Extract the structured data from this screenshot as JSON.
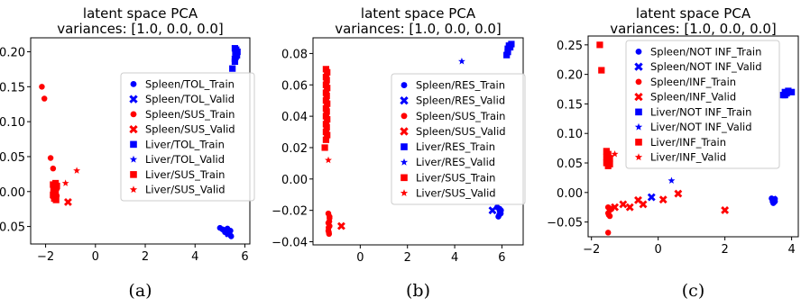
{
  "chart_data": [
    {
      "type": "scatter",
      "title": "latent space PCA",
      "subtitle": "variances: [1.0, 0.0, 0.0]",
      "caption": "(a)",
      "xlim": [
        -2.6,
        6.2
      ],
      "ylim": [
        -0.075,
        0.22
      ],
      "xticks": [
        -2,
        0,
        2,
        4,
        6
      ],
      "yticks": [
        -0.05,
        0.0,
        0.05,
        0.1,
        0.15,
        0.2
      ],
      "ytick_labels": [
        "−0.05",
        "0.00",
        "0.05",
        "0.10",
        "0.15",
        "0.20"
      ],
      "xtick_labels": [
        "−2",
        "0",
        "2",
        "4",
        "6"
      ],
      "legend_position": "center-right",
      "series": [
        {
          "name": "Spleen/TOL_Train",
          "color": "#0000ff",
          "marker": "circle",
          "points": [
            [
              5.0,
              -0.052
            ],
            [
              5.1,
              -0.054
            ],
            [
              5.2,
              -0.055
            ],
            [
              5.25,
              -0.057
            ],
            [
              5.3,
              -0.053
            ],
            [
              5.35,
              -0.058
            ],
            [
              5.38,
              -0.06
            ],
            [
              5.4,
              -0.062
            ],
            [
              5.42,
              -0.056
            ],
            [
              5.45,
              -0.064
            ],
            [
              5.3,
              -0.059
            ],
            [
              5.2,
              -0.058
            ]
          ]
        },
        {
          "name": "Spleen/TOL_Valid",
          "color": "#0000ff",
          "marker": "x",
          "points": [
            [
              5.35,
              -0.06
            ]
          ]
        },
        {
          "name": "Spleen/SUS_Train",
          "color": "#ff0000",
          "marker": "circle",
          "points": [
            [
              -2.15,
              0.15
            ],
            [
              -2.05,
              0.133
            ],
            [
              -1.8,
              0.048
            ],
            [
              -1.7,
              0.033
            ],
            [
              -1.65,
              0.008
            ],
            [
              -1.6,
              0.002
            ],
            [
              -1.65,
              -0.004
            ],
            [
              -1.55,
              0.004
            ],
            [
              -1.7,
              -0.008
            ],
            [
              -1.6,
              -0.012
            ],
            [
              -1.55,
              -0.006
            ],
            [
              -1.7,
              0.0
            ]
          ]
        },
        {
          "name": "Spleen/SUS_Valid",
          "color": "#ff0000",
          "marker": "x",
          "points": [
            [
              -1.1,
              -0.015
            ]
          ]
        },
        {
          "name": "Liver/TOL_Train",
          "color": "#0000ff",
          "marker": "square",
          "points": [
            [
              5.5,
              0.176
            ],
            [
              5.6,
              0.19
            ],
            [
              5.62,
              0.2
            ],
            [
              5.6,
              0.205
            ],
            [
              5.65,
              0.198
            ],
            [
              5.68,
              0.195
            ],
            [
              5.6,
              0.186
            ],
            [
              5.65,
              0.203
            ],
            [
              5.63,
              0.193
            ],
            [
              5.7,
              0.2
            ]
          ]
        },
        {
          "name": "Liver/TOL_Valid",
          "color": "#0000ff",
          "marker": "star",
          "points": [
            [
              5.6,
              0.192
            ]
          ]
        },
        {
          "name": "Liver/SUS_Train",
          "color": "#ff0000",
          "marker": "square",
          "points": [
            [
              -1.7,
              0.01
            ],
            [
              -1.65,
              0.005
            ],
            [
              -1.6,
              -0.002
            ],
            [
              -1.65,
              -0.01
            ],
            [
              -1.55,
              0.008
            ],
            [
              -1.6,
              0.012
            ],
            [
              -1.7,
              -0.005
            ],
            [
              -1.58,
              -0.012
            ],
            [
              -1.62,
              0.002
            ],
            [
              -1.68,
              0.006
            ]
          ]
        },
        {
          "name": "Liver/SUS_Valid",
          "color": "#ff0000",
          "marker": "star",
          "points": [
            [
              -0.75,
              0.03
            ],
            [
              -1.2,
              0.012
            ]
          ]
        }
      ]
    },
    {
      "type": "scatter",
      "title": "latent space PCA",
      "subtitle": "variances: [1.0, 0.0, 0.0]",
      "caption": "(b)",
      "xlim": [
        -2.0,
        6.9
      ],
      "ylim": [
        -0.042,
        0.09
      ],
      "xticks": [
        0,
        2,
        4,
        6
      ],
      "yticks": [
        -0.04,
        -0.02,
        0.0,
        0.02,
        0.04,
        0.06,
        0.08
      ],
      "ytick_labels": [
        "−0.04",
        "−0.02",
        "0.00",
        "0.02",
        "0.04",
        "0.06",
        "0.08"
      ],
      "xtick_labels": [
        "0",
        "2",
        "4",
        "6"
      ],
      "legend_position": "center-right",
      "series": [
        {
          "name": "Spleen/RES_Train",
          "color": "#0000ff",
          "marker": "circle",
          "points": [
            [
              5.8,
              -0.018
            ],
            [
              5.9,
              -0.02
            ],
            [
              5.95,
              -0.022
            ],
            [
              5.85,
              -0.024
            ],
            [
              5.9,
              -0.019
            ],
            [
              5.92,
              -0.021
            ],
            [
              5.88,
              -0.023
            ],
            [
              5.96,
              -0.02
            ]
          ]
        },
        {
          "name": "Spleen/RES_Valid",
          "color": "#0000ff",
          "marker": "x",
          "points": [
            [
              5.6,
              -0.02
            ]
          ]
        },
        {
          "name": "Spleen/SUS_Train",
          "color": "#ff0000",
          "marker": "circle",
          "points": [
            [
              -1.35,
              -0.022
            ],
            [
              -1.3,
              -0.025
            ],
            [
              -1.35,
              -0.028
            ],
            [
              -1.3,
              -0.03
            ],
            [
              -1.35,
              -0.033
            ],
            [
              -1.32,
              -0.035
            ],
            [
              -1.3,
              -0.024
            ],
            [
              -1.34,
              -0.031
            ],
            [
              -1.31,
              -0.027
            ],
            [
              -1.33,
              -0.034
            ]
          ]
        },
        {
          "name": "Spleen/SUS_Valid",
          "color": "#ff0000",
          "marker": "x",
          "points": [
            [
              -0.8,
              -0.03
            ]
          ]
        },
        {
          "name": "Liver/RES_Train",
          "color": "#0000ff",
          "marker": "square",
          "points": [
            [
              6.2,
              0.079
            ],
            [
              6.25,
              0.083
            ],
            [
              6.3,
              0.085
            ],
            [
              6.4,
              0.086
            ],
            [
              6.25,
              0.081
            ],
            [
              6.35,
              0.084
            ]
          ]
        },
        {
          "name": "Liver/RES_Valid",
          "color": "#0000ff",
          "marker": "star",
          "points": [
            [
              4.3,
              0.075
            ]
          ]
        },
        {
          "name": "Liver/SUS_Train",
          "color": "#ff0000",
          "marker": "square",
          "points": [
            [
              -1.45,
              0.07
            ],
            [
              -1.45,
              0.065
            ],
            [
              -1.45,
              0.06
            ],
            [
              -1.45,
              0.055
            ],
            [
              -1.45,
              0.05
            ],
            [
              -1.45,
              0.045
            ],
            [
              -1.45,
              0.04
            ],
            [
              -1.45,
              0.035
            ],
            [
              -1.45,
              0.03
            ],
            [
              -1.45,
              0.025
            ],
            [
              -1.5,
              0.02
            ],
            [
              -1.4,
              0.068
            ],
            [
              -1.4,
              0.058
            ],
            [
              -1.4,
              0.048
            ],
            [
              -1.4,
              0.038
            ],
            [
              -1.4,
              0.028
            ],
            [
              -1.42,
              0.063
            ],
            [
              -1.42,
              0.053
            ],
            [
              -1.42,
              0.043
            ],
            [
              -1.42,
              0.033
            ]
          ]
        },
        {
          "name": "Liver/SUS_Valid",
          "color": "#ff0000",
          "marker": "star",
          "points": [
            [
              -1.35,
              0.012
            ]
          ]
        }
      ]
    },
    {
      "type": "scatter",
      "title": "latent space PCA",
      "subtitle": "variances: [1.0, 0.0, 0.0]",
      "caption": "(c)",
      "xlim": [
        -2.1,
        4.2
      ],
      "ylim": [
        -0.075,
        0.265
      ],
      "xticks": [
        -2,
        0,
        2,
        4
      ],
      "yticks": [
        -0.05,
        0.0,
        0.05,
        0.1,
        0.15,
        0.2,
        0.25
      ],
      "ytick_labels": [
        "−0.05",
        "0.00",
        "0.05",
        "0.10",
        "0.15",
        "0.20",
        "0.25"
      ],
      "xtick_labels": [
        "−2",
        "0",
        "2",
        "4"
      ],
      "legend_position": "top-center",
      "series": [
        {
          "name": "Spleen/NOT INF_Train",
          "color": "#0000ff",
          "marker": "circle",
          "points": [
            [
              3.4,
              -0.01
            ],
            [
              3.45,
              -0.012
            ],
            [
              3.5,
              -0.015
            ],
            [
              3.45,
              -0.018
            ],
            [
              3.5,
              -0.011
            ],
            [
              3.48,
              -0.016
            ]
          ]
        },
        {
          "name": "Spleen/NOT INF_Valid",
          "color": "#0000ff",
          "marker": "x",
          "points": [
            [
              -0.2,
              -0.008
            ],
            [
              3.45,
              -0.012
            ]
          ]
        },
        {
          "name": "Spleen/INF_Train",
          "color": "#ff0000",
          "marker": "circle",
          "points": [
            [
              -1.5,
              -0.025
            ],
            [
              -1.45,
              -0.03
            ],
            [
              -1.5,
              -0.035
            ],
            [
              -1.45,
              -0.04
            ],
            [
              -1.4,
              -0.028
            ],
            [
              -1.48,
              -0.038
            ],
            [
              -1.5,
              -0.068
            ]
          ]
        },
        {
          "name": "Spleen/INF_Valid",
          "color": "#ff0000",
          "marker": "x",
          "points": [
            [
              -1.3,
              -0.025
            ],
            [
              -1.05,
              -0.02
            ],
            [
              -0.85,
              -0.025
            ],
            [
              -0.6,
              -0.013
            ],
            [
              -0.45,
              -0.02
            ],
            [
              0.15,
              -0.012
            ],
            [
              0.6,
              -0.002
            ],
            [
              2.0,
              -0.03
            ]
          ]
        },
        {
          "name": "Liver/NOT INF_Train",
          "color": "#0000ff",
          "marker": "square",
          "points": [
            [
              3.75,
              0.165
            ],
            [
              3.8,
              0.17
            ],
            [
              3.85,
              0.168
            ],
            [
              3.9,
              0.172
            ],
            [
              3.8,
              0.165
            ],
            [
              4.0,
              0.17
            ]
          ]
        },
        {
          "name": "Liver/NOT INF_Valid",
          "color": "#0000ff",
          "marker": "star",
          "points": [
            [
              0.4,
              0.02
            ]
          ]
        },
        {
          "name": "Liver/INF_Train",
          "color": "#ff0000",
          "marker": "square",
          "points": [
            [
              -1.75,
              0.25
            ],
            [
              -1.7,
              0.207
            ],
            [
              -1.55,
              0.07
            ],
            [
              -1.5,
              0.065
            ],
            [
              -1.55,
              0.06
            ],
            [
              -1.5,
              0.055
            ],
            [
              -1.55,
              0.05
            ],
            [
              -1.5,
              0.045
            ],
            [
              -1.45,
              0.058
            ],
            [
              -1.45,
              0.048
            ]
          ]
        },
        {
          "name": "Liver/INF_Valid",
          "color": "#ff0000",
          "marker": "star",
          "points": [
            [
              -1.3,
              0.065
            ]
          ]
        }
      ]
    }
  ]
}
